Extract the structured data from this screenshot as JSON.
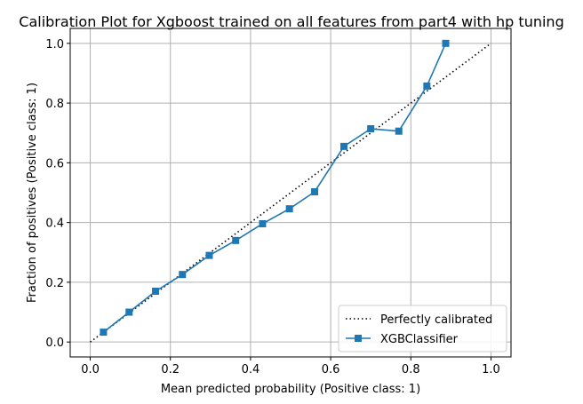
{
  "chart_data": {
    "type": "line",
    "title": "Calibration Plot for Xgboost trained on all features from part4 with hp tuning",
    "xlabel": "Mean predicted probability (Positive class: 1)",
    "ylabel": "Fraction of positives (Positive class: 1)",
    "xlim": [
      -0.05,
      1.05
    ],
    "ylim": [
      -0.05,
      1.05
    ],
    "xticks": [
      "0.0",
      "0.2",
      "0.4",
      "0.6",
      "0.8",
      "1.0"
    ],
    "yticks": [
      "0.0",
      "0.2",
      "0.4",
      "0.6",
      "0.8",
      "1.0"
    ],
    "grid": true,
    "legend_position": "bottom-right",
    "series": [
      {
        "name": "Perfectly calibrated",
        "style": "dotted",
        "color": "#000000",
        "x": [
          0.0,
          1.0
        ],
        "y": [
          0.0,
          1.0
        ]
      },
      {
        "name": "XGBClassifier",
        "style": "solid",
        "marker": "square",
        "color": "#1f77b4",
        "x": [
          0.033,
          0.097,
          0.163,
          0.23,
          0.297,
          0.363,
          0.43,
          0.497,
          0.56,
          0.633,
          0.7,
          0.77,
          0.84,
          0.887
        ],
        "y": [
          0.033,
          0.1,
          0.17,
          0.226,
          0.29,
          0.34,
          0.396,
          0.446,
          0.503,
          0.655,
          0.714,
          0.706,
          0.857,
          1.0
        ]
      }
    ]
  }
}
